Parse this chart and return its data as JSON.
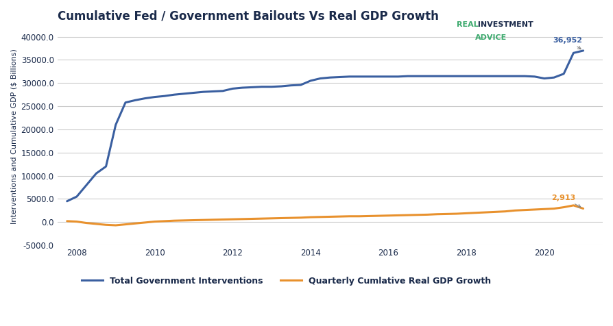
{
  "title": "Cumulative Fed / Government Bailouts Vs Real GDP Growth",
  "ylabel": "Interventions and Cumulative GDP ($ Billions)",
  "ylim": [
    -5000,
    42000
  ],
  "yticks": [
    -5000.0,
    0.0,
    5000.0,
    10000.0,
    15000.0,
    20000.0,
    25000.0,
    30000.0,
    35000.0,
    40000.0
  ],
  "xlim": [
    2007.5,
    2021.5
  ],
  "xticks": [
    2008,
    2010,
    2012,
    2014,
    2016,
    2018,
    2020
  ],
  "blue_color": "#3a5fa0",
  "orange_color": "#e8912d",
  "bg_color": "#ffffff",
  "grid_color": "#cccccc",
  "title_color": "#1a2a4a",
  "axis_label_color": "#1a2a4a",
  "tick_color": "#1a2a4a",
  "legend_blue_label": "Total Government Interventions",
  "legend_orange_label": "Quarterly Cumlative Real GDP Growth",
  "blue_annotation": "36,952",
  "orange_annotation": "2,913",
  "logo_green": "#3daa6e",
  "logo_dark": "#1a2a4a",
  "blue_x": [
    2007.75,
    2008.0,
    2008.25,
    2008.5,
    2008.75,
    2009.0,
    2009.25,
    2009.5,
    2009.75,
    2010.0,
    2010.25,
    2010.5,
    2010.75,
    2011.0,
    2011.25,
    2011.5,
    2011.75,
    2012.0,
    2012.25,
    2012.5,
    2012.75,
    2013.0,
    2013.25,
    2013.5,
    2013.75,
    2014.0,
    2014.25,
    2014.5,
    2014.75,
    2015.0,
    2015.25,
    2015.5,
    2015.75,
    2016.0,
    2016.25,
    2016.5,
    2016.75,
    2017.0,
    2017.25,
    2017.5,
    2017.75,
    2018.0,
    2018.25,
    2018.5,
    2018.75,
    2019.0,
    2019.25,
    2019.5,
    2019.75,
    2020.0,
    2020.25,
    2020.5,
    2020.75,
    2021.0
  ],
  "blue_y": [
    4500,
    5500,
    8000,
    10500,
    12000,
    21000,
    25800,
    26300,
    26700,
    27000,
    27200,
    27500,
    27700,
    27900,
    28100,
    28200,
    28300,
    28800,
    29000,
    29100,
    29200,
    29200,
    29300,
    29500,
    29600,
    30500,
    31000,
    31200,
    31300,
    31400,
    31400,
    31400,
    31400,
    31400,
    31400,
    31500,
    31500,
    31500,
    31500,
    31500,
    31500,
    31500,
    31500,
    31500,
    31500,
    31500,
    31500,
    31500,
    31400,
    31000,
    31200,
    32000,
    36500,
    37000
  ],
  "orange_x": [
    2007.75,
    2008.0,
    2008.25,
    2008.5,
    2008.75,
    2009.0,
    2009.25,
    2009.5,
    2009.75,
    2010.0,
    2010.25,
    2010.5,
    2010.75,
    2011.0,
    2011.25,
    2011.5,
    2011.75,
    2012.0,
    2012.25,
    2012.5,
    2012.75,
    2013.0,
    2013.25,
    2013.5,
    2013.75,
    2014.0,
    2014.25,
    2014.5,
    2014.75,
    2015.0,
    2015.25,
    2015.5,
    2015.75,
    2016.0,
    2016.25,
    2016.5,
    2016.75,
    2017.0,
    2017.25,
    2017.5,
    2017.75,
    2018.0,
    2018.25,
    2018.5,
    2018.75,
    2019.0,
    2019.25,
    2019.5,
    2019.75,
    2020.0,
    2020.25,
    2020.5,
    2020.75,
    2021.0
  ],
  "orange_y": [
    200,
    100,
    -200,
    -400,
    -600,
    -700,
    -500,
    -300,
    -100,
    100,
    200,
    300,
    350,
    400,
    450,
    500,
    550,
    600,
    650,
    700,
    750,
    800,
    850,
    900,
    950,
    1050,
    1100,
    1150,
    1200,
    1250,
    1250,
    1300,
    1350,
    1400,
    1450,
    1500,
    1550,
    1600,
    1700,
    1750,
    1800,
    1900,
    2000,
    2100,
    2200,
    2300,
    2500,
    2600,
    2700,
    2800,
    2900,
    3200,
    3600,
    2913
  ]
}
